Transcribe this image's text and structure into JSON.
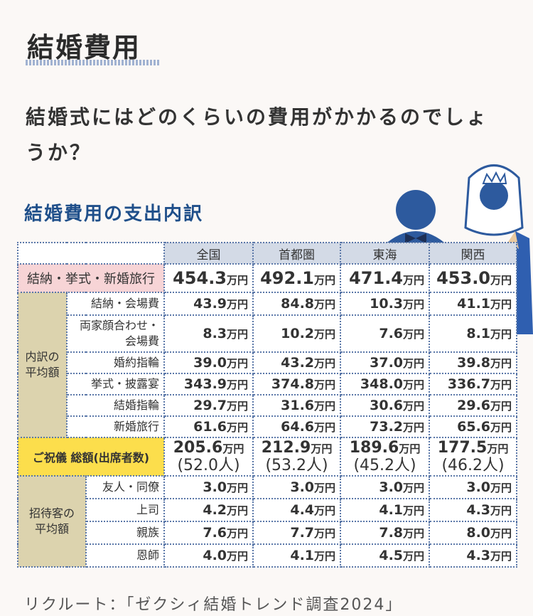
{
  "title": "結婚費用",
  "question": "結婚式にはどのくらいの費用がかかるのでしょうか？",
  "subtitle": "結婚費用の支出内訳",
  "unit": "万円",
  "columns": [
    "全国",
    "首都圏",
    "東海",
    "関西"
  ],
  "total": {
    "label": "結納・挙式・新婚旅行",
    "values": [
      "454.3",
      "492.1",
      "471.4",
      "453.0"
    ]
  },
  "breakdown": {
    "group_label": "内訳の平均額",
    "rows": [
      {
        "label": "結納・会場費",
        "values": [
          "43.9",
          "84.8",
          "10.3",
          "41.1"
        ]
      },
      {
        "label": "両家顔合わせ・会場費",
        "values": [
          "8.3",
          "10.2",
          "7.6",
          "8.1"
        ]
      },
      {
        "label": "婚約指輪",
        "values": [
          "39.0",
          "43.2",
          "37.0",
          "39.8"
        ]
      },
      {
        "label": "挙式・披露宴",
        "values": [
          "343.9",
          "374.8",
          "348.0",
          "336.7"
        ]
      },
      {
        "label": "結婚指輪",
        "values": [
          "29.7",
          "31.6",
          "30.6",
          "29.6"
        ]
      },
      {
        "label": "新婚旅行",
        "values": [
          "61.6",
          "64.6",
          "73.2",
          "65.6"
        ]
      }
    ]
  },
  "gift": {
    "label": "ご祝儀 総額(出席者数)",
    "values": [
      "205.6",
      "212.9",
      "189.6",
      "177.5"
    ],
    "attendees": [
      "(52.0人)",
      "(53.2人)",
      "(45.2人)",
      "(46.2人)"
    ]
  },
  "guests": {
    "group_label": "招待客の平均額",
    "rows": [
      {
        "label": "友人・同僚",
        "values": [
          "3.0",
          "3.0",
          "3.0",
          "3.0"
        ]
      },
      {
        "label": "上司",
        "values": [
          "4.2",
          "4.4",
          "4.1",
          "4.3"
        ]
      },
      {
        "label": "親族",
        "values": [
          "7.6",
          "7.7",
          "7.8",
          "8.0"
        ]
      },
      {
        "label": "恩師",
        "values": [
          "4.0",
          "4.1",
          "4.5",
          "4.3"
        ]
      }
    ]
  },
  "source": "リクルート：「ゼクシィ結婚トレンド調査2024」",
  "colors": {
    "accent": "#1f4f8a",
    "header": "#d3dae6",
    "total": "#f7d4d6",
    "group": "#dcd3ae",
    "gift": "#fcde4c",
    "border": "#5a77a8"
  }
}
